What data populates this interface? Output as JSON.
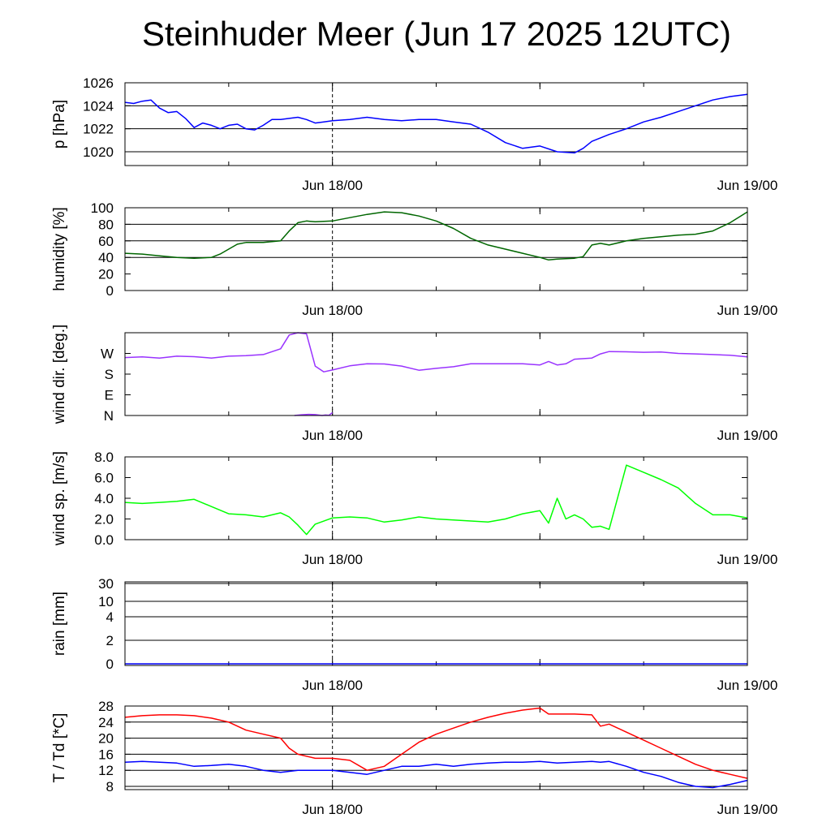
{
  "title": "Steinhuder Meer (Jun 17 2025 12UTC)",
  "chart_data": [
    {
      "id": "pressure",
      "type": "line",
      "ylabel": "p [hPa]",
      "ylim": [
        1018.8,
        1026
      ],
      "yticks": [
        1020,
        1022,
        1024,
        1026
      ],
      "ytick_labels": [
        "1020",
        "1022",
        "1024",
        "1026"
      ],
      "gridlines": [
        1020,
        1022,
        1024,
        1026
      ],
      "xtick_labels": [
        "Jun 18/00",
        "Jun 19/00"
      ],
      "series": [
        {
          "color": "#0000ff",
          "x": [
            0,
            0.5,
            1,
            1.5,
            2,
            2.5,
            3,
            3.5,
            4,
            4.5,
            5,
            5.5,
            6,
            6.5,
            7,
            7.5,
            8,
            8.5,
            9,
            9.5,
            10,
            10.5,
            11,
            11.5,
            12,
            13,
            14,
            15,
            16,
            17,
            18,
            19,
            20,
            21,
            22,
            23,
            24,
            25,
            26,
            26.5,
            27,
            28,
            29,
            30,
            31,
            32,
            33,
            34,
            35,
            36
          ],
          "y": [
            1024.3,
            1024.2,
            1024.4,
            1024.5,
            1023.8,
            1023.4,
            1023.5,
            1022.9,
            1022.1,
            1022.5,
            1022.3,
            1022.0,
            1022.3,
            1022.4,
            1022.0,
            1021.9,
            1022.3,
            1022.8,
            1022.8,
            1022.9,
            1023.0,
            1022.8,
            1022.5,
            1022.6,
            1022.7,
            1022.8,
            1023.0,
            1022.8,
            1022.7,
            1022.8,
            1022.8,
            1022.6,
            1022.4,
            1021.7,
            1020.8,
            1020.3,
            1020.5,
            1020.0,
            1019.9,
            1020.3,
            1020.9,
            1021.5,
            1022.0,
            1022.6,
            1023.0,
            1023.5,
            1024.0,
            1024.5,
            1024.8,
            1025.0
          ]
        }
      ]
    },
    {
      "id": "humidity",
      "type": "line",
      "ylabel": "humidity [%]",
      "ylim": [
        0,
        100
      ],
      "yticks": [
        0,
        20,
        40,
        60,
        80,
        100
      ],
      "ytick_labels": [
        "0",
        "20",
        "40",
        "60",
        "80",
        "100"
      ],
      "gridlines": [
        40,
        60,
        80
      ],
      "xtick_labels": [
        "Jun 18/00",
        "Jun 19/00"
      ],
      "series": [
        {
          "color": "#006600",
          "x": [
            0,
            1,
            2,
            3,
            4,
            5,
            5.5,
            6,
            6.5,
            7,
            8,
            9,
            9.5,
            10,
            10.5,
            11,
            12,
            13,
            14,
            15,
            16,
            17,
            18,
            19,
            20,
            21,
            22,
            23,
            24,
            24.5,
            25,
            26,
            26.5,
            27,
            27.5,
            28,
            29,
            30,
            31,
            32,
            33,
            34,
            35,
            36
          ],
          "y": [
            45,
            44,
            42,
            40,
            39,
            40,
            44,
            50,
            56,
            58,
            58,
            60,
            72,
            82,
            84,
            83,
            84,
            88,
            92,
            95,
            94,
            90,
            84,
            75,
            63,
            55,
            50,
            45,
            40,
            37,
            38,
            39,
            41,
            55,
            57,
            55,
            60,
            63,
            65,
            67,
            68,
            72,
            82,
            95
          ]
        }
      ]
    },
    {
      "id": "wind-direction",
      "type": "line",
      "ylabel": "wind dir. [deg.]",
      "ylim": [
        0,
        360
      ],
      "yticks": [
        0,
        90,
        180,
        270
      ],
      "ytick_labels": [
        "N",
        "E",
        "S",
        "W"
      ],
      "gridlines": [],
      "xtick_labels": [
        "Jun 18/00",
        "Jun 19/00"
      ],
      "series": [
        {
          "color": "#9933ff",
          "x": [
            0,
            1,
            2,
            3,
            4,
            5,
            6,
            7,
            8,
            9,
            9.5,
            10,
            10.5,
            11,
            11.5,
            12,
            13,
            14,
            15,
            16,
            17,
            18,
            19,
            20,
            21,
            22,
            23,
            24,
            24.5,
            25,
            25.5,
            26,
            27,
            27.5,
            28,
            29,
            30,
            31,
            32,
            33,
            34,
            35,
            36
          ],
          "y": [
            252,
            255,
            250,
            258,
            256,
            250,
            258,
            260,
            265,
            290,
            350,
            360,
            355,
            215,
            190,
            198,
            216,
            225,
            224,
            215,
            197,
            205,
            212,
            225,
            225,
            225,
            225,
            220,
            235,
            220,
            225,
            245,
            250,
            268,
            278,
            277,
            275,
            276,
            270,
            268,
            265,
            262,
            255
          ]
        },
        {
          "color": "#9933ff",
          "x": [
            9.8,
            10.2,
            10.6,
            11.0,
            11.4,
            11.6,
            11.8,
            11.95,
            12.0
          ],
          "y": [
            0,
            3,
            5,
            4,
            0,
            2,
            1,
            10,
            12
          ]
        }
      ]
    },
    {
      "id": "wind-speed",
      "type": "line",
      "ylabel": "wind sp. [m/s]",
      "ylim": [
        0,
        8
      ],
      "yticks": [
        0,
        2,
        4,
        6,
        8
      ],
      "ytick_labels": [
        "0.0",
        "2.0",
        "4.0",
        "6.0",
        "8.0"
      ],
      "gridlines": [],
      "xtick_labels": [
        "Jun 18/00",
        "Jun 19/00"
      ],
      "series": [
        {
          "color": "#00ff00",
          "x": [
            0,
            1,
            2,
            3,
            4,
            5,
            6,
            7,
            8,
            9,
            9.5,
            10,
            10.5,
            11,
            12,
            13,
            14,
            15,
            16,
            17,
            18,
            19,
            20,
            21,
            22,
            23,
            24,
            24.5,
            25,
            25.5,
            26,
            26.5,
            27,
            27.5,
            28,
            29,
            30,
            31,
            32,
            33,
            34,
            35,
            36
          ],
          "y": [
            3.6,
            3.5,
            3.6,
            3.7,
            3.9,
            3.2,
            2.5,
            2.4,
            2.2,
            2.6,
            2.2,
            1.4,
            0.5,
            1.5,
            2.1,
            2.2,
            2.1,
            1.7,
            1.9,
            2.2,
            2.0,
            1.9,
            1.8,
            1.7,
            2.0,
            2.5,
            2.8,
            1.6,
            4.0,
            2.0,
            2.4,
            2.0,
            1.2,
            1.3,
            1.0,
            7.2,
            6.5,
            5.8,
            5.0,
            3.5,
            2.4,
            2.4,
            2.1
          ]
        }
      ]
    },
    {
      "id": "rain",
      "type": "line",
      "ylabel": "rain [mm]",
      "scale": "nonlinear (labelled ticks)",
      "yticks": [
        0,
        2,
        4,
        10,
        30
      ],
      "ytick_labels": [
        "0",
        "2",
        "4",
        "10",
        "30"
      ],
      "gridlines": [
        2,
        4,
        10,
        30
      ],
      "xtick_labels": [
        "Jun 18/00",
        "Jun 19/00"
      ],
      "series": [
        {
          "color": "#0000ff",
          "x": [
            0,
            36
          ],
          "y": [
            0,
            0
          ]
        }
      ]
    },
    {
      "id": "temperature",
      "type": "line",
      "ylabel": "T / Td [*C]",
      "ylim": [
        7.2,
        28
      ],
      "yticks": [
        8,
        12,
        16,
        20,
        24,
        28
      ],
      "ytick_labels": [
        "8",
        "12",
        "16",
        "20",
        "24",
        "28"
      ],
      "gridlines": [
        8,
        12,
        16,
        20,
        24,
        28
      ],
      "xtick_labels": [
        "Jun 18/00",
        "Jun 19/00"
      ],
      "series": [
        {
          "color": "#ff0000",
          "x": [
            0,
            1,
            2,
            3,
            4,
            5,
            6,
            7,
            8,
            9,
            9.5,
            10,
            11,
            12,
            13,
            14,
            15,
            16,
            17,
            18,
            19,
            20,
            21,
            22,
            23,
            24,
            24.5,
            25,
            26,
            27,
            27.5,
            28,
            29,
            30,
            31,
            32,
            33,
            34,
            35,
            36
          ],
          "y": [
            25.2,
            25.6,
            25.8,
            25.8,
            25.6,
            25.0,
            24.0,
            22.0,
            21.0,
            20.0,
            17.5,
            16.0,
            15.0,
            15.0,
            14.5,
            12.0,
            13.0,
            16.0,
            19.0,
            21.0,
            22.5,
            24.0,
            25.2,
            26.2,
            27.0,
            27.5,
            26.0,
            26.0,
            26.0,
            25.8,
            23.0,
            23.5,
            21.5,
            19.5,
            17.5,
            15.5,
            13.5,
            12.0,
            11.0,
            10.0
          ]
        },
        {
          "color": "#0000ff",
          "x": [
            0,
            1,
            2,
            3,
            4,
            5,
            6,
            7,
            8,
            9,
            10,
            11,
            12,
            13,
            14,
            15,
            16,
            17,
            18,
            19,
            20,
            21,
            22,
            23,
            24,
            25,
            26,
            27,
            27.5,
            28,
            29,
            30,
            31,
            32,
            33,
            34,
            35,
            36
          ],
          "y": [
            14.0,
            14.2,
            14.0,
            13.8,
            13.0,
            13.2,
            13.5,
            13.0,
            12.0,
            11.5,
            12.0,
            12.0,
            12.0,
            11.5,
            11.0,
            12.0,
            13.0,
            13.0,
            13.5,
            13.0,
            13.5,
            13.8,
            14.0,
            14.0,
            14.2,
            13.8,
            14.0,
            14.2,
            14.0,
            14.2,
            13.0,
            11.5,
            10.5,
            9.0,
            8.0,
            7.7,
            8.5,
            9.5
          ]
        }
      ]
    }
  ]
}
